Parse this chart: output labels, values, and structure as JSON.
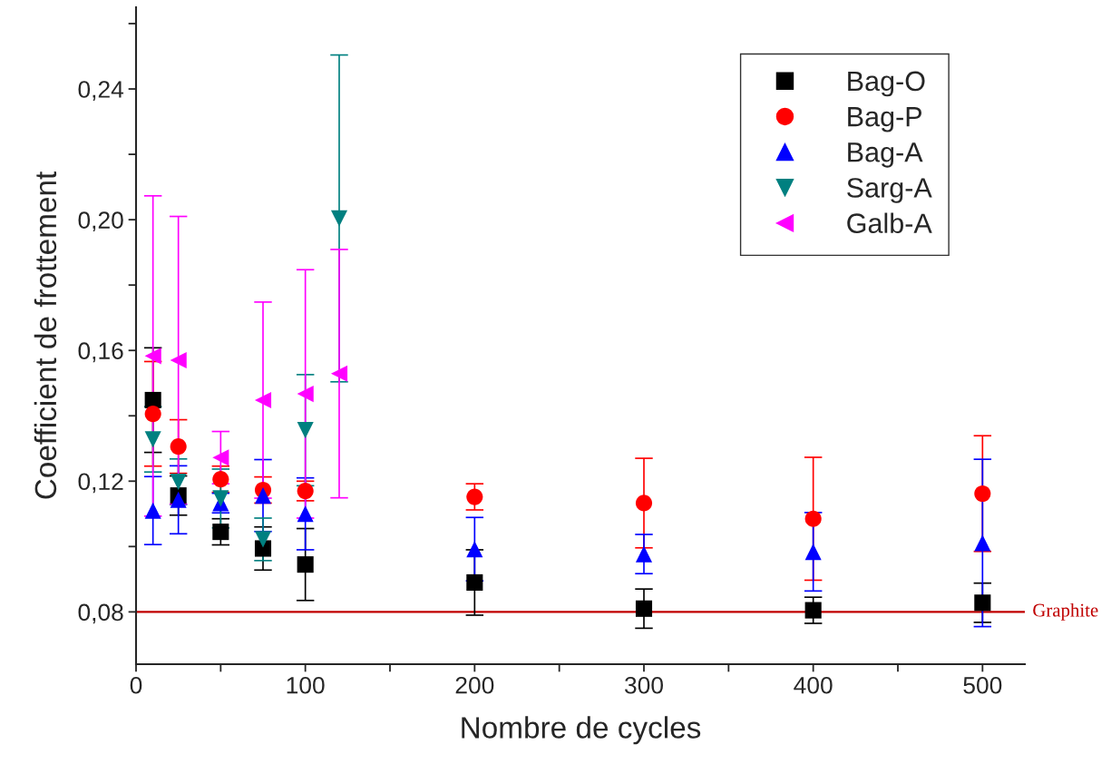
{
  "chart_data": {
    "type": "scatter",
    "xlabel": "Nombre de cycles",
    "ylabel": "Coefficient de frottement",
    "xlim": [
      0,
      525
    ],
    "ylim": [
      0.064,
      0.265
    ],
    "xticks": [
      0,
      {
        "value": 50,
        "label": null
      },
      100,
      {
        "value": 150,
        "label": null
      },
      200,
      {
        "value": 250,
        "label": null
      },
      300,
      {
        "value": 350,
        "label": null
      },
      400,
      {
        "value": 450,
        "label": null
      },
      500
    ],
    "yticks": [
      {
        "value": 0.08,
        "label": "0,08"
      },
      {
        "value": 0.1,
        "label": null
      },
      {
        "value": 0.12,
        "label": "0,12"
      },
      {
        "value": 0.14,
        "label": null
      },
      {
        "value": 0.16,
        "label": "0,16"
      },
      {
        "value": 0.18,
        "label": null
      },
      {
        "value": 0.2,
        "label": "0,20"
      },
      {
        "value": 0.22,
        "label": null
      },
      {
        "value": 0.24,
        "label": "0,24"
      },
      {
        "value": 0.26,
        "label": null
      }
    ],
    "grid": false,
    "legend": "top right",
    "series": [
      {
        "name": "Bag-O",
        "color": "#000000",
        "marker": "square",
        "x": [
          10,
          25,
          50,
          75,
          100,
          200,
          300,
          400,
          500
        ],
        "values": [
          0.1448,
          0.1156,
          0.1045,
          0.0994,
          0.0945,
          0.089,
          0.081,
          0.0805,
          0.0828
        ],
        "errors": [
          0.016,
          0.006,
          0.004,
          0.0066,
          0.011,
          0.01,
          0.006,
          0.004,
          0.006
        ]
      },
      {
        "name": "Bag-P",
        "color": "#ff0000",
        "marker": "circle",
        "x": [
          10,
          25,
          50,
          75,
          100,
          200,
          300,
          400,
          500
        ],
        "values": [
          0.1406,
          0.1306,
          0.1206,
          0.1173,
          0.117,
          0.1152,
          0.1133,
          0.1085,
          0.1162
        ],
        "errors": [
          0.016,
          0.0082,
          0.004,
          0.004,
          0.003,
          0.004,
          0.0137,
          0.0188,
          0.0177
        ]
      },
      {
        "name": "Bag-A",
        "color": "#0000ff",
        "marker": "triangle",
        "x": [
          10,
          25,
          50,
          75,
          100,
          200,
          300,
          400,
          500
        ],
        "values": [
          0.111,
          0.1143,
          0.1133,
          0.1156,
          0.11,
          0.0992,
          0.0977,
          0.0984,
          0.1011
        ],
        "errors": [
          0.0104,
          0.0104,
          0.003,
          0.011,
          0.011,
          0.0097,
          0.006,
          0.012,
          0.0256
        ]
      },
      {
        "name": "Sarg-A",
        "color": "#008080",
        "marker": "triangle-down",
        "x": [
          10,
          25,
          50,
          75,
          100,
          120
        ],
        "values": [
          0.1328,
          0.1198,
          0.1147,
          0.1022,
          0.1356,
          0.2004
        ],
        "errors": [
          0.01,
          0.007,
          0.009,
          0.0065,
          0.017,
          0.05
        ]
      },
      {
        "name": "Galb-A",
        "color": "#ff00ff",
        "marker": "triangle-left",
        "x": [
          10,
          25,
          50,
          75,
          100,
          120
        ],
        "values": [
          0.1583,
          0.157,
          0.1272,
          0.1448,
          0.1467,
          0.1529
        ],
        "errors": [
          0.049,
          0.044,
          0.008,
          0.03,
          0.038,
          0.038
        ]
      }
    ],
    "ref_lines": [
      {
        "axis": "y",
        "value": 0.08,
        "label": "Graphite",
        "color": "#c00000",
        "line_style": "solid"
      }
    ]
  }
}
